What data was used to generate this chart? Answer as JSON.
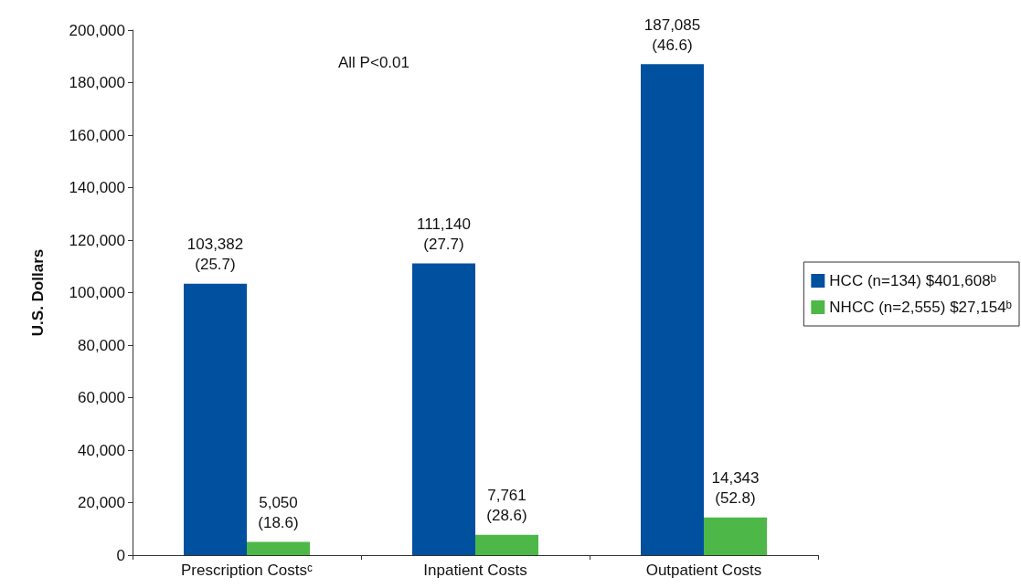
{
  "chart_data": {
    "type": "bar",
    "ylabel": "U.S. Dollars",
    "categories": [
      "Prescription Costsᶜ",
      "Inpatient Costs",
      "Outpatient Costs"
    ],
    "series": [
      {
        "name": "HCC (n=134) $401,608ᵇ",
        "color": "#0050a0",
        "values": [
          103382,
          111140,
          187085
        ],
        "value_labels": [
          "103,382\n(25.7)",
          "111,140\n(27.7)",
          "187,085\n(46.6)"
        ]
      },
      {
        "name": "NHCC (n=2,555) $27,154ᵇ",
        "color": "#4db848",
        "values": [
          5050,
          7761,
          14343
        ],
        "value_labels": [
          "5,050\n(18.6)",
          "7,761\n(28.6)",
          "14,343\n(52.8)"
        ]
      }
    ],
    "ylim": [
      0,
      200000
    ],
    "yticks": [
      0,
      {
        "value": 20000,
        "label": "20,000"
      },
      {
        "value": 40000,
        "label": "40,000"
      },
      {
        "value": 60000,
        "label": "60,000"
      },
      {
        "value": 80000,
        "label": "80,000"
      },
      {
        "value": 100000,
        "label": "100,000"
      },
      {
        "value": 120000,
        "label": "120,000"
      },
      {
        "value": 140000,
        "label": "140,000"
      },
      {
        "value": 160000,
        "label": "160,000"
      },
      {
        "value": 180000,
        "label": "180,000"
      },
      {
        "value": 200000,
        "label": "200,000"
      }
    ],
    "annotations": [
      "All P<0.01"
    ],
    "legend": "right",
    "grid": false
  }
}
